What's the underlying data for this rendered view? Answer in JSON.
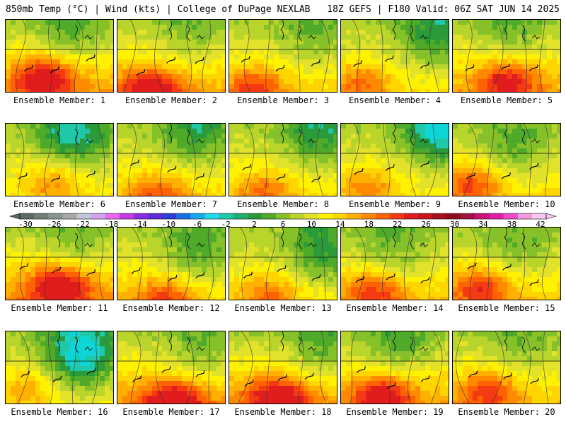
{
  "header": {
    "left": "850mb Temp (°C) | Wind (kts) | College of DuPage NEXLAB",
    "right": "18Z GEFS | F180 Valid: 06Z SAT JUN 14 2025"
  },
  "caption_prefix": "Ensemble Member: ",
  "members": [
    {
      "label": "Ensemble Member: 1",
      "warmth": 0.8,
      "cool": 0.35
    },
    {
      "label": "Ensemble Member: 2",
      "warmth": 0.75,
      "cool": 0.25
    },
    {
      "label": "Ensemble Member: 3",
      "warmth": 0.55,
      "cool": 0.3
    },
    {
      "label": "Ensemble Member: 4",
      "warmth": 0.45,
      "cool": 0.55
    },
    {
      "label": "Ensemble Member: 5",
      "warmth": 0.7,
      "cool": 0.3
    },
    {
      "label": "Ensemble Member: 6",
      "warmth": 0.4,
      "cool": 0.7
    },
    {
      "label": "Ensemble Member: 7",
      "warmth": 0.5,
      "cool": 0.5
    },
    {
      "label": "Ensemble Member: 8",
      "warmth": 0.45,
      "cool": 0.55
    },
    {
      "label": "Ensemble Member: 9",
      "warmth": 0.4,
      "cool": 0.85
    },
    {
      "label": "Ensemble Member: 10",
      "warmth": 0.55,
      "cool": 0.4
    },
    {
      "label": "Ensemble Member: 11",
      "warmth": 0.85,
      "cool": 0.3
    },
    {
      "label": "Ensemble Member: 12",
      "warmth": 0.55,
      "cool": 0.45
    },
    {
      "label": "Ensemble Member: 13",
      "warmth": 0.45,
      "cool": 0.55
    },
    {
      "label": "Ensemble Member: 14",
      "warmth": 0.6,
      "cool": 0.35
    },
    {
      "label": "Ensemble Member: 15",
      "warmth": 0.6,
      "cool": 0.3
    },
    {
      "label": "Ensemble Member: 16",
      "warmth": 0.35,
      "cool": 0.9
    },
    {
      "label": "Ensemble Member: 17",
      "warmth": 0.8,
      "cool": 0.35
    },
    {
      "label": "Ensemble Member: 18",
      "warmth": 0.8,
      "cool": 0.4
    },
    {
      "label": "Ensemble Member: 19",
      "warmth": 0.75,
      "cool": 0.4
    },
    {
      "label": "Ensemble Member: 20",
      "warmth": 0.6,
      "cool": 0.25
    }
  ],
  "colorbar": {
    "tick_labels": [
      "-30",
      "-26",
      "-22",
      "-18",
      "-14",
      "-10",
      "-6",
      "-2",
      "2",
      "6",
      "10",
      "14",
      "18",
      "22",
      "26",
      "30",
      "34",
      "38",
      "42"
    ],
    "colors": [
      "#5a6b60",
      "#6f7f74",
      "#8a948c",
      "#a5aaa8",
      "#c2c6d8",
      "#d4a2f0",
      "#e66af0",
      "#c637e6",
      "#8a2be0",
      "#5a2bd6",
      "#2f3bd6",
      "#1a6ee6",
      "#18a8f0",
      "#1fd8e8",
      "#1ec8a8",
      "#1eb06e",
      "#2a9a3a",
      "#4faa2a",
      "#86c12a",
      "#b9d42a",
      "#e2e22a",
      "#fff200",
      "#ffd500",
      "#ffb000",
      "#ff8a00",
      "#ff6200",
      "#f43a12",
      "#e01c1c",
      "#c8141e",
      "#a80e1e",
      "#8e0a1e",
      "#a01048",
      "#c81078",
      "#e020a8",
      "#f04ac8",
      "#f59ae0",
      "#fac8f0"
    ]
  }
}
